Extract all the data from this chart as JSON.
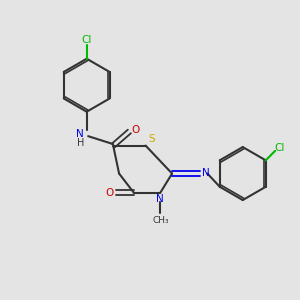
{
  "bg_color": "#e4e4e4",
  "bond_color": "#333333",
  "colors": {
    "Cl": "#00bb00",
    "N": "#0000ee",
    "O": "#cc0000",
    "S": "#ccaa00",
    "C": "#333333",
    "H": "#333333"
  }
}
